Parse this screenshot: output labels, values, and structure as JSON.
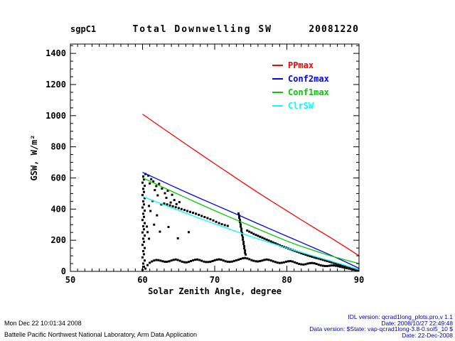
{
  "header": {
    "site": "sgpC1",
    "title": "Total Downwelling SW",
    "date": "20081220"
  },
  "chart_data": {
    "type": "scatter",
    "title": "Total Downwelling SW",
    "site": "sgpC1",
    "date_label": "20081220",
    "xlabel": "Solar Zenith Angle, degree",
    "ylabel": "GSW, W/m²",
    "xlim": [
      50,
      90
    ],
    "ylim": [
      0,
      1460
    ],
    "x_ticks": [
      50,
      60,
      70,
      80,
      90
    ],
    "x_minor_step": 1,
    "y_ticks": [
      0,
      200,
      400,
      600,
      800,
      1000,
      1200,
      1400
    ],
    "y_minor_step": 50,
    "grid": false,
    "legend_position": "upper-right-inside",
    "axis_color": "#000000",
    "series": [
      {
        "name": "PPmax",
        "color": "#ff0000",
        "x_start": 60,
        "x_step": 2,
        "values": [
          1010,
          945,
          881,
          817,
          754,
          691,
          629,
          567,
          506,
          447,
          389,
          331,
          274,
          218,
          160,
          100
        ]
      },
      {
        "name": "Conf2max",
        "color": "#0000ff",
        "x_start": 60,
        "x_step": 2,
        "values": [
          636,
          594,
          551,
          509,
          468,
          428,
          388,
          347,
          306,
          266,
          226,
          186,
          146,
          106,
          64,
          20
        ]
      },
      {
        "name": "Conf1max",
        "color": "#00cc00",
        "x_start": 60,
        "x_step": 2,
        "values": [
          601,
          558,
          515,
          473,
          431,
          390,
          350,
          311,
          272,
          233,
          195,
          161,
          130,
          101,
          75,
          50
        ]
      },
      {
        "name": "ClrSW",
        "color": "#00ffff",
        "x_start": 60,
        "x_step": 2,
        "values": [
          481,
          445,
          409,
          374,
          339,
          305,
          272,
          240,
          209,
          179,
          150,
          122,
          95,
          68,
          40,
          10
        ]
      }
    ],
    "scatter": {
      "name": "GSW measurements",
      "marker": "square",
      "color": "#000000",
      "size": 3,
      "clusters": [
        {
          "name": "sunrise-edge",
          "points": [
            [
              60.0,
              10
            ],
            [
              60.2,
              30
            ],
            [
              60.1,
              50
            ],
            [
              60.3,
              70
            ],
            [
              60.0,
              90
            ],
            [
              60.2,
              110
            ],
            [
              60.1,
              130
            ],
            [
              60.3,
              150
            ],
            [
              60.0,
              170
            ],
            [
              60.2,
              190
            ],
            [
              60.1,
              210
            ],
            [
              60.3,
              230
            ],
            [
              60.0,
              250
            ],
            [
              60.2,
              270
            ],
            [
              60.1,
              290
            ],
            [
              60.3,
              310
            ],
            [
              60.0,
              330
            ],
            [
              60.2,
              350
            ],
            [
              60.1,
              370
            ],
            [
              60.3,
              390
            ],
            [
              60.0,
              410
            ],
            [
              60.2,
              430
            ],
            [
              60.1,
              450
            ],
            [
              60.3,
              470
            ],
            [
              60.0,
              490
            ],
            [
              60.2,
              510
            ],
            [
              60.1,
              530
            ],
            [
              60.3,
              550
            ],
            [
              60.0,
              570
            ],
            [
              60.2,
              590
            ],
            [
              60.1,
              610
            ],
            [
              60.4,
              625
            ]
          ]
        },
        {
          "name": "morning-cloud",
          "points": [
            [
              60.8,
              615
            ],
            [
              61.2,
              592
            ],
            [
              61.0,
              565
            ],
            [
              61.5,
              578
            ],
            [
              61.9,
              548
            ],
            [
              62.3,
              562
            ],
            [
              61.7,
              522
            ],
            [
              62.7,
              532
            ],
            [
              63.1,
              502
            ],
            [
              62.1,
              488
            ],
            [
              63.5,
              518
            ],
            [
              63.3,
              472
            ],
            [
              64.1,
              492
            ],
            [
              64.4,
              458
            ],
            [
              61.4,
              452
            ],
            [
              62.6,
              430
            ],
            [
              63.9,
              442
            ],
            [
              64.7,
              432
            ],
            [
              65.1,
              445
            ],
            [
              60.9,
              420
            ],
            [
              61.1,
              388
            ],
            [
              62.0,
              360
            ]
          ]
        },
        {
          "name": "clear-diagonal",
          "points": [
            [
              63.0,
              436
            ],
            [
              63.4,
              430
            ],
            [
              63.8,
              424
            ],
            [
              64.2,
              418
            ],
            [
              64.6,
              412
            ],
            [
              65.0,
              406
            ],
            [
              65.4,
              400
            ],
            [
              65.8,
              394
            ],
            [
              66.2,
              388
            ],
            [
              66.6,
              382
            ],
            [
              67.0,
              376
            ],
            [
              67.4,
              370
            ],
            [
              67.8,
              363
            ],
            [
              68.2,
              356
            ],
            [
              68.6,
              349
            ],
            [
              69.0,
              342
            ],
            [
              69.4,
              335
            ],
            [
              69.8,
              327
            ],
            [
              70.2,
              318
            ],
            [
              70.6,
              310
            ],
            [
              71.0,
              303
            ],
            [
              71.4,
              297
            ],
            [
              71.8,
              292
            ]
          ]
        },
        {
          "name": "midday-drop",
          "points": [
            [
              73.3,
              372
            ],
            [
              73.4,
              358
            ],
            [
              73.4,
              344
            ],
            [
              73.5,
              330
            ],
            [
              73.5,
              316
            ],
            [
              73.6,
              302
            ],
            [
              73.6,
              288
            ],
            [
              73.7,
              274
            ],
            [
              73.7,
              260
            ],
            [
              73.8,
              246
            ],
            [
              73.8,
              232
            ],
            [
              73.9,
              218
            ],
            [
              73.9,
              204
            ],
            [
              74.0,
              190
            ],
            [
              74.0,
              176
            ],
            [
              74.1,
              162
            ],
            [
              74.1,
              148
            ],
            [
              74.2,
              134
            ],
            [
              74.2,
              120
            ],
            [
              74.3,
              108
            ]
          ]
        },
        {
          "name": "isolated-points",
          "points": [
            [
              60.6,
              288
            ],
            [
              60.7,
              252
            ],
            [
              60.9,
              210
            ],
            [
              61.6,
              300
            ],
            [
              62.4,
              255
            ],
            [
              63.6,
              285
            ],
            [
              64.9,
              212
            ],
            [
              66.4,
              252
            ]
          ]
        },
        {
          "name": "low-band",
          "x_start": 60.4,
          "x_step": 0.3,
          "values": [
            18,
            40,
            55,
            64,
            70,
            73,
            72,
            69,
            65,
            62,
            62,
            65,
            70,
            74,
            76,
            73,
            68,
            62,
            59,
            58,
            61,
            66,
            71,
            75,
            76,
            73,
            68,
            63,
            60,
            60,
            62,
            66,
            71,
            75,
            77,
            75,
            70,
            65,
            62,
            61,
            63,
            67,
            71,
            75,
            80,
            84,
            86,
            83,
            78,
            72,
            68,
            65,
            64,
            66,
            70,
            74,
            76,
            74,
            70,
            65,
            60,
            56,
            54,
            55,
            58,
            62,
            65,
            66,
            63,
            58,
            53,
            48,
            45,
            44,
            46,
            50,
            53,
            54,
            52,
            48,
            43,
            39,
            36,
            34,
            34,
            36,
            38,
            38,
            36,
            33,
            30,
            27,
            24,
            21,
            18,
            15,
            12,
            9,
            7
          ]
        },
        {
          "name": "late-clear-band",
          "x_start": 74.5,
          "x_step": 0.3,
          "values": [
            262,
            255,
            248,
            241,
            234,
            228,
            222,
            216,
            210,
            204,
            198,
            192,
            186,
            180,
            174,
            168,
            162,
            157,
            152,
            147,
            142,
            137,
            132,
            127,
            122,
            117,
            112,
            107,
            102,
            98,
            94,
            90,
            86,
            82,
            78,
            74,
            70,
            66,
            62,
            58,
            54,
            50,
            46,
            42,
            38,
            34,
            30,
            26,
            22,
            18,
            14,
            10
          ]
        }
      ]
    }
  },
  "footer_left": {
    "timestamp": "Mon Dec 22 10:01:34 2008",
    "organization": "Battelle Pacific Northwest National Laboratory, Arm Data Application"
  },
  "footer_right": {
    "lines": [
      "IDL version: qcrad1long_plots.pro,v 1.1",
      "Date: 2008/10/27 22:49:48",
      "Data version: $State: vap-qcrad1long-3.8-0.sol5_10 $",
      "Date: 22-Dec-2008"
    ]
  }
}
